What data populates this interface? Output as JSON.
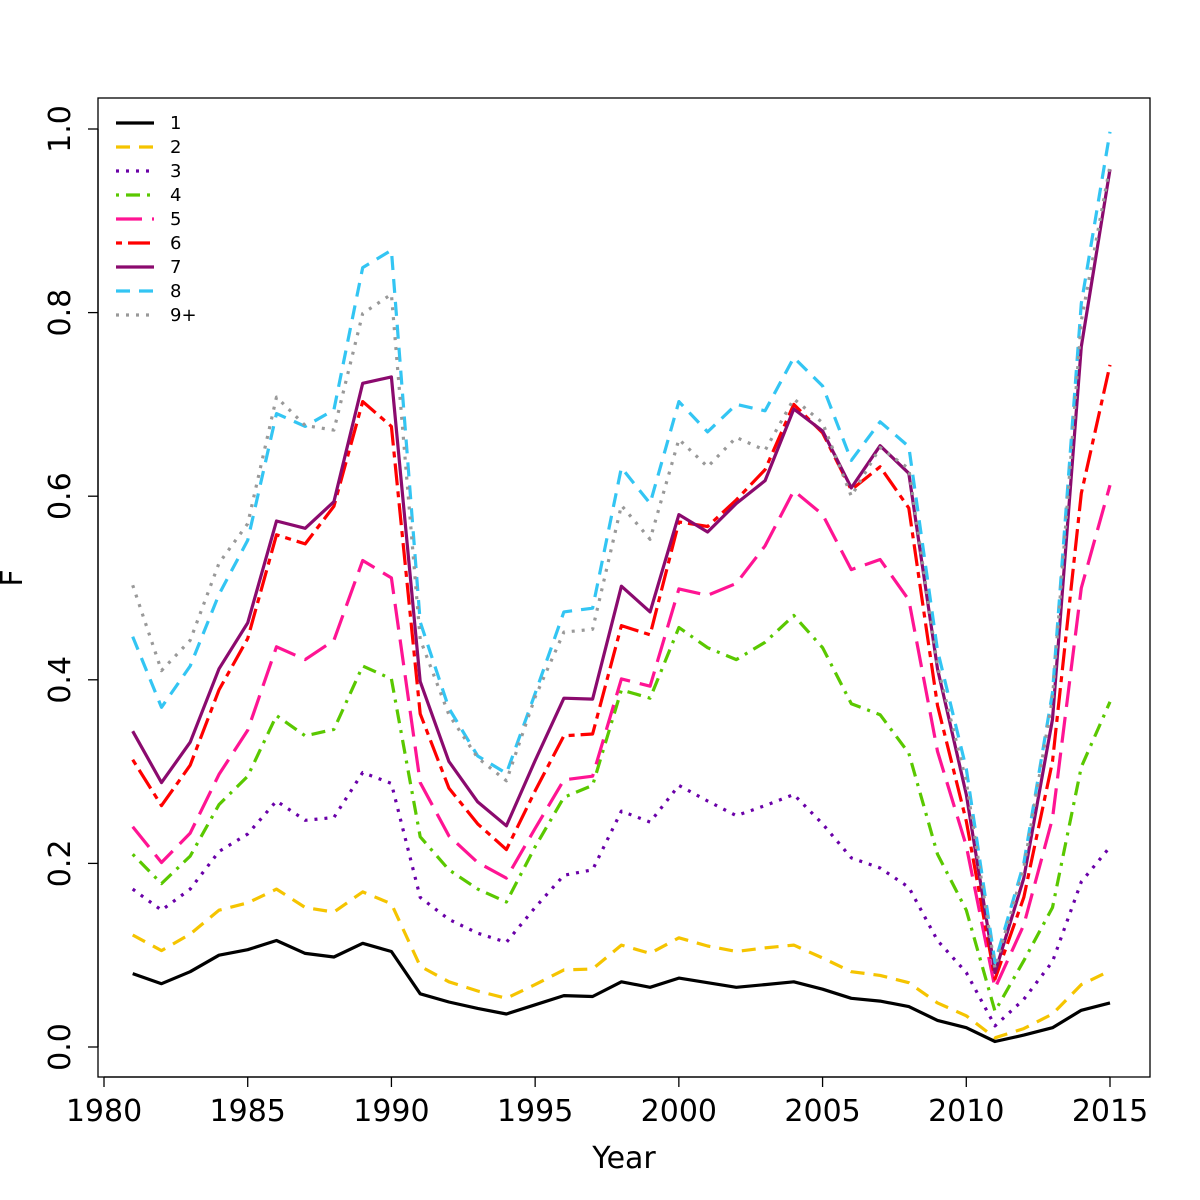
{
  "chart_data": {
    "type": "line",
    "title": "",
    "xlabel": "Year",
    "ylabel": "F",
    "xlim": [
      1980,
      2015
    ],
    "ylim": [
      0.0,
      1.0
    ],
    "x_ticks": [
      "1980",
      "1985",
      "1990",
      "1995",
      "2000",
      "2005",
      "2010",
      "2015"
    ],
    "y_ticks": [
      "0.0",
      "0.2",
      "0.4",
      "0.6",
      "0.8",
      "1.0"
    ],
    "grid": false,
    "legend_position": "top-left",
    "x": [
      1981,
      1982,
      1983,
      1984,
      1985,
      1986,
      1987,
      1988,
      1989,
      1990,
      1991,
      1992,
      1993,
      1994,
      1995,
      1996,
      1997,
      1998,
      1999,
      2000,
      2001,
      2002,
      2003,
      2004,
      2005,
      2006,
      2007,
      2008,
      2009,
      2010,
      2011,
      2012,
      2013,
      2014,
      2015
    ],
    "series": [
      {
        "name": "1",
        "color": "#000000",
        "dash": "solid",
        "values": [
          0.08,
          0.069,
          0.082,
          0.1,
          0.106,
          0.116,
          0.102,
          0.098,
          0.113,
          0.104,
          0.058,
          0.049,
          0.042,
          0.036,
          0.046,
          0.056,
          0.055,
          0.071,
          0.065,
          0.075,
          0.07,
          0.065,
          0.068,
          0.071,
          0.063,
          0.053,
          0.05,
          0.044,
          0.029,
          0.021,
          0.006,
          0.013,
          0.021,
          0.04,
          0.048
        ]
      },
      {
        "name": "2",
        "color": "#f5c400",
        "dash": "dashed",
        "values": [
          0.122,
          0.105,
          0.123,
          0.149,
          0.157,
          0.172,
          0.152,
          0.147,
          0.169,
          0.156,
          0.088,
          0.071,
          0.061,
          0.053,
          0.068,
          0.084,
          0.085,
          0.111,
          0.102,
          0.119,
          0.11,
          0.104,
          0.108,
          0.111,
          0.097,
          0.082,
          0.078,
          0.07,
          0.048,
          0.034,
          0.01,
          0.02,
          0.036,
          0.068,
          0.083
        ]
      },
      {
        "name": "3",
        "color": "#6a00a8",
        "dash": "dotted",
        "values": [
          0.172,
          0.149,
          0.172,
          0.213,
          0.232,
          0.268,
          0.247,
          0.25,
          0.299,
          0.287,
          0.163,
          0.139,
          0.124,
          0.114,
          0.152,
          0.187,
          0.193,
          0.257,
          0.245,
          0.285,
          0.268,
          0.252,
          0.263,
          0.275,
          0.243,
          0.206,
          0.195,
          0.174,
          0.116,
          0.081,
          0.023,
          0.052,
          0.093,
          0.18,
          0.218
        ]
      },
      {
        "name": "4",
        "color": "#5ac800",
        "dash": "dashdot",
        "values": [
          0.21,
          0.178,
          0.208,
          0.264,
          0.295,
          0.361,
          0.339,
          0.346,
          0.415,
          0.401,
          0.229,
          0.193,
          0.172,
          0.158,
          0.218,
          0.272,
          0.285,
          0.389,
          0.38,
          0.457,
          0.435,
          0.422,
          0.441,
          0.47,
          0.435,
          0.374,
          0.362,
          0.32,
          0.21,
          0.149,
          0.039,
          0.094,
          0.152,
          0.305,
          0.376
        ]
      },
      {
        "name": "5",
        "color": "#ff1493",
        "dash": "longdash",
        "values": [
          0.24,
          0.201,
          0.233,
          0.297,
          0.345,
          0.436,
          0.422,
          0.443,
          0.53,
          0.511,
          0.288,
          0.23,
          0.201,
          0.184,
          0.238,
          0.291,
          0.295,
          0.401,
          0.393,
          0.499,
          0.492,
          0.505,
          0.546,
          0.606,
          0.58,
          0.52,
          0.531,
          0.487,
          0.322,
          0.219,
          0.064,
          0.133,
          0.249,
          0.5,
          0.612
        ]
      },
      {
        "name": "6",
        "color": "#ff0000",
        "dash": "twodash",
        "values": [
          0.313,
          0.263,
          0.307,
          0.389,
          0.445,
          0.558,
          0.548,
          0.589,
          0.703,
          0.676,
          0.363,
          0.282,
          0.243,
          0.215,
          0.279,
          0.339,
          0.341,
          0.459,
          0.449,
          0.572,
          0.567,
          0.596,
          0.629,
          0.7,
          0.669,
          0.607,
          0.632,
          0.587,
          0.372,
          0.246,
          0.074,
          0.163,
          0.311,
          0.603,
          0.743
        ]
      },
      {
        "name": "7",
        "color": "#8b0a6e",
        "dash": "solid",
        "values": [
          0.344,
          0.288,
          0.332,
          0.412,
          0.462,
          0.573,
          0.565,
          0.594,
          0.723,
          0.73,
          0.398,
          0.311,
          0.267,
          0.241,
          0.312,
          0.38,
          0.379,
          0.502,
          0.474,
          0.58,
          0.561,
          0.592,
          0.617,
          0.695,
          0.671,
          0.609,
          0.655,
          0.625,
          0.412,
          0.275,
          0.081,
          0.184,
          0.357,
          0.763,
          0.956
        ]
      },
      {
        "name": "8",
        "color": "#33c5f3",
        "dash": "dashed",
        "values": [
          0.447,
          0.37,
          0.415,
          0.493,
          0.552,
          0.69,
          0.676,
          0.694,
          0.849,
          0.868,
          0.463,
          0.369,
          0.317,
          0.298,
          0.385,
          0.474,
          0.478,
          0.631,
          0.592,
          0.703,
          0.67,
          0.7,
          0.693,
          0.751,
          0.72,
          0.639,
          0.681,
          0.654,
          0.432,
          0.303,
          0.092,
          0.2,
          0.386,
          0.81,
          0.997
        ]
      },
      {
        "name": "9+",
        "color": "#999999",
        "dash": "dotted",
        "values": [
          0.503,
          0.41,
          0.443,
          0.527,
          0.57,
          0.708,
          0.677,
          0.672,
          0.799,
          0.82,
          0.444,
          0.362,
          0.315,
          0.29,
          0.381,
          0.452,
          0.455,
          0.59,
          0.553,
          0.662,
          0.632,
          0.664,
          0.65,
          0.706,
          0.68,
          0.6,
          0.653,
          0.63,
          0.415,
          0.289,
          0.086,
          0.195,
          0.38,
          0.791,
          0.96
        ]
      }
    ]
  }
}
